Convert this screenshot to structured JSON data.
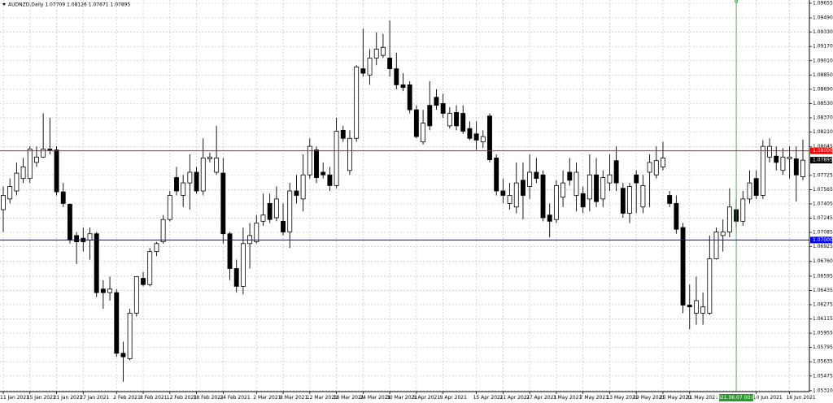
{
  "chart_data": {
    "type": "candlestick",
    "title": "AUDNZD,Daily  1.07709 1.08126 1.07671 1.07895",
    "x": [
      "11 Jan 2021",
      null,
      null,
      null,
      "15 Jan 2021",
      null,
      null,
      null,
      "21 Jan 2021",
      null,
      null,
      null,
      "27 Jan 2021",
      null,
      null,
      null,
      null,
      "2 Feb 2021",
      null,
      null,
      null,
      "8 Feb 2021",
      null,
      null,
      null,
      "12 Feb 2021",
      null,
      null,
      null,
      "18 Feb 2021",
      null,
      null,
      null,
      "24 Feb 2021",
      null,
      null,
      null,
      null,
      "2 Mar 2021",
      null,
      null,
      null,
      "8 Mar 2021",
      null,
      null,
      null,
      "12 Mar 2021",
      null,
      null,
      null,
      "18 Mar 2021",
      null,
      null,
      null,
      "24 Mar 2021",
      null,
      null,
      null,
      "30 Mar 2021",
      null,
      null,
      null,
      "5 Apr 2021",
      null,
      null,
      null,
      "9 Apr 2021",
      null,
      null,
      null,
      null,
      "15 Apr 2021",
      null,
      null,
      null,
      "21 Apr 2021",
      null,
      null,
      null,
      "27 Apr 2021",
      null,
      null,
      null,
      "3 May 2021",
      null,
      null,
      null,
      "7 May 2021",
      null,
      null,
      null,
      "13 May 2021",
      null,
      null,
      null,
      "19 May 2021",
      null,
      null,
      null,
      "25 May 2021",
      null,
      null,
      null,
      "31 May 2021",
      null,
      null,
      null,
      null,
      null,
      null,
      "2021.06.07 00:00",
      null,
      null,
      "10 Jun 2021",
      null,
      null,
      null,
      null,
      "16 Jun 2021",
      null,
      null
    ],
    "open": [
      1.0734,
      1.0746,
      1.0755,
      1.0769,
      1.0769,
      1.0787,
      1.0793,
      1.0802,
      1.0801,
      1.0754,
      1.074,
      1.0705,
      1.0702,
      1.07,
      1.0707,
      1.0645,
      1.0641,
      1.0641,
      1.0573,
      1.0567,
      1.0618,
      1.0657,
      1.065,
      1.0687,
      1.0698,
      1.0723,
      1.077,
      1.075,
      1.0764,
      1.0776,
      1.0755,
      1.0791,
      1.0776,
      1.0775,
      1.0707,
      1.0668,
      1.0648,
      1.0696,
      1.0698,
      1.0721,
      1.0741,
      1.0725,
      1.0721,
      1.0709,
      1.0755,
      1.0746,
      1.0773,
      1.0801,
      1.0776,
      1.0773,
      1.0761,
      1.0823,
      1.0778,
      1.0814,
      1.0892,
      1.0885,
      1.0904,
      1.0907,
      1.0904,
      1.0892,
      1.0874,
      1.0874,
      1.0846,
      1.081,
      1.0851,
      1.086,
      1.0853,
      1.0828,
      1.0843,
      1.0842,
      1.0825,
      1.0819,
      1.081,
      1.0839,
      1.0792,
      1.0755,
      1.0741,
      1.0737,
      1.0767,
      1.076,
      1.0776,
      1.0773,
      1.0728,
      1.0723,
      1.0748,
      1.0776,
      1.075,
      1.0752,
      1.0746,
      1.0773,
      1.0746,
      1.0764,
      1.0789,
      1.0758,
      1.073,
      1.0773,
      1.0737,
      1.0776,
      1.0773,
      1.0782,
      1.075,
      1.0741,
      1.0714,
      1.0627,
      1.0618,
      1.0618,
      1.0618,
      1.0679,
      1.0705,
      1.0709,
      1.0734,
      1.0721,
      1.0746,
      1.0769,
      1.075,
      1.0793,
      1.0794,
      1.0778,
      1.0791,
      1.0791,
      1.07709
    ],
    "high": [
      1.076,
      1.0769,
      1.0787,
      1.0792,
      1.0805,
      1.0805,
      1.0842,
      1.0837,
      1.0805,
      1.0764,
      1.0741,
      1.0709,
      1.0714,
      1.0714,
      1.0709,
      1.0655,
      1.0659,
      1.0645,
      1.0586,
      1.0623,
      1.0659,
      1.0664,
      1.0691,
      1.0698,
      1.0728,
      1.0755,
      1.0782,
      1.0773,
      1.0796,
      1.0782,
      1.0814,
      1.0798,
      1.0828,
      1.0792,
      1.0709,
      1.0678,
      1.0714,
      1.0719,
      1.0728,
      1.0752,
      1.0752,
      1.076,
      1.0741,
      1.0764,
      1.0773,
      1.0796,
      1.0814,
      1.0805,
      1.0787,
      1.0782,
      1.0837,
      1.0828,
      1.0823,
      1.0896,
      1.0937,
      1.0914,
      1.0933,
      1.0931,
      1.0946,
      1.091,
      1.0887,
      1.0878,
      1.0851,
      1.0846,
      1.0878,
      1.0869,
      1.0864,
      1.0849,
      1.0851,
      1.0851,
      1.0833,
      1.0833,
      1.0823,
      1.0842,
      1.0796,
      1.0769,
      1.0764,
      1.0787,
      1.0787,
      1.0796,
      1.0792,
      1.0778,
      1.0741,
      1.0767,
      1.0778,
      1.0792,
      1.0787,
      1.076,
      1.0796,
      1.0792,
      1.0778,
      1.0796,
      1.0805,
      1.0764,
      1.0764,
      1.0778,
      1.0773,
      1.0796,
      1.0805,
      1.081,
      1.0755,
      1.075,
      1.0719,
      1.065,
      1.0659,
      1.0641,
      1.0705,
      1.0714,
      1.0723,
      1.0758,
      1.0746,
      1.0755,
      1.0778,
      1.0778,
      1.0812,
      1.0814,
      1.0805,
      1.0803,
      1.0805,
      1.0805,
      1.08126
    ],
    "low": [
      1.0709,
      1.0741,
      1.075,
      1.0764,
      1.0764,
      1.0782,
      1.0792,
      1.0796,
      1.075,
      1.0737,
      1.0696,
      1.0673,
      1.0687,
      1.0678,
      1.0636,
      1.0623,
      1.0632,
      1.0569,
      1.0541,
      1.0565,
      1.0614,
      1.0648,
      1.0648,
      1.0682,
      1.0696,
      1.0721,
      1.075,
      1.0737,
      1.0734,
      1.0752,
      1.075,
      1.0787,
      1.0773,
      1.0696,
      1.0655,
      1.0641,
      1.0639,
      1.0668,
      1.0696,
      1.0716,
      1.0719,
      1.0721,
      1.0705,
      1.0691,
      1.0741,
      1.0732,
      1.0769,
      1.0764,
      1.0769,
      1.0755,
      1.0758,
      1.081,
      1.0773,
      1.081,
      1.0883,
      1.0874,
      1.0896,
      1.0904,
      1.0883,
      1.0869,
      1.0867,
      1.0842,
      1.0814,
      1.0807,
      1.0823,
      1.0846,
      1.0837,
      1.0825,
      1.0823,
      1.0819,
      1.0812,
      1.0801,
      1.0803,
      1.0787,
      1.075,
      1.0741,
      1.0734,
      1.073,
      1.0723,
      1.0746,
      1.0764,
      1.0721,
      1.0703,
      1.0719,
      1.0737,
      1.0761,
      1.0732,
      1.073,
      1.0732,
      1.0737,
      1.0737,
      1.0755,
      1.0755,
      1.0725,
      1.0719,
      1.073,
      1.073,
      1.0737,
      1.0769,
      1.0778,
      1.0737,
      1.0707,
      1.0618,
      1.06,
      1.0605,
      1.0605,
      1.0616,
      1.0678,
      1.0687,
      1.0703,
      1.0714,
      1.0716,
      1.0741,
      1.0746,
      1.0746,
      1.0787,
      1.0778,
      1.0773,
      1.0769,
      1.0743,
      1.07671
    ],
    "close": [
      1.075,
      1.076,
      1.0775,
      1.0782,
      1.0802,
      1.0793,
      1.0802,
      1.0801,
      1.0754,
      1.0741,
      1.07,
      1.0698,
      1.0698,
      1.0707,
      1.0641,
      1.0641,
      1.0645,
      1.0573,
      1.0569,
      1.0618,
      1.0659,
      1.065,
      1.0687,
      1.0696,
      1.0723,
      1.075,
      1.0755,
      1.0764,
      1.0776,
      1.0755,
      1.0792,
      1.0793,
      1.0792,
      1.0707,
      1.0668,
      1.0648,
      1.0696,
      1.0705,
      1.0719,
      1.0728,
      1.0723,
      1.0746,
      1.0709,
      1.0755,
      1.075,
      1.0773,
      1.0805,
      1.077,
      1.0773,
      1.0761,
      1.0822,
      1.0814,
      1.0814,
      1.0894,
      1.0887,
      1.0904,
      1.0914,
      1.0916,
      1.0892,
      1.0874,
      1.0871,
      1.0846,
      1.0816,
      1.0831,
      1.0828,
      1.0851,
      1.0842,
      1.0842,
      1.0828,
      1.0822,
      1.0814,
      1.0812,
      1.0816,
      1.079,
      1.0755,
      1.075,
      1.075,
      1.0764,
      1.075,
      1.0776,
      1.0769,
      1.0725,
      1.0721,
      1.0761,
      1.0764,
      1.0767,
      1.0776,
      1.0737,
      1.0773,
      1.0743,
      1.077,
      1.0773,
      1.0764,
      1.073,
      1.076,
      1.0764,
      1.0761,
      1.0787,
      1.0789,
      1.0792,
      1.0741,
      1.0712,
      1.0627,
      1.0625,
      1.0632,
      1.0625,
      1.0679,
      1.0709,
      1.0709,
      1.0737,
      1.0721,
      1.0746,
      1.0764,
      1.075,
      1.0805,
      1.0805,
      1.0787,
      1.0793,
      1.0793,
      1.0773,
      1.07895
    ],
    "up_color": "#ffffff",
    "down_color": "#000000",
    "wick_color": "#000000",
    "ylim": [
      1.053,
      1.09691
    ],
    "yticks": [
      {
        "value": 1.09655,
        "label": "1.09655"
      },
      {
        "value": 1.0949,
        "label": "1.09490"
      },
      {
        "value": 1.0933,
        "label": "1.09330"
      },
      {
        "value": 1.0917,
        "label": "1.09170"
      },
      {
        "value": 1.0901,
        "label": "1.09010"
      },
      {
        "value": 1.0885,
        "label": "1.08850"
      },
      {
        "value": 1.0869,
        "label": "1.08690"
      },
      {
        "value": 1.0853,
        "label": "1.08530"
      },
      {
        "value": 1.0837,
        "label": "1.08370"
      },
      {
        "value": 1.0821,
        "label": "1.08210"
      },
      {
        "value": 1.08045,
        "label": "1.08045"
      },
      {
        "value": 1.07725,
        "label": "1.07725"
      },
      {
        "value": 1.07565,
        "label": "1.07565"
      },
      {
        "value": 1.07405,
        "label": "1.07405"
      },
      {
        "value": 1.07245,
        "label": "1.07245"
      },
      {
        "value": 1.07085,
        "label": "1.07085"
      },
      {
        "value": 1.06925,
        "label": "1.06925"
      },
      {
        "value": 1.0676,
        "label": "1.06760"
      },
      {
        "value": 1.06595,
        "label": "1.06595"
      },
      {
        "value": 1.06435,
        "label": "1.06435"
      },
      {
        "value": 1.06275,
        "label": "1.06275"
      },
      {
        "value": 1.06115,
        "label": "1.06115"
      },
      {
        "value": 1.05955,
        "label": "1.05955"
      },
      {
        "value": 1.05795,
        "label": "1.05795"
      },
      {
        "value": 1.05635,
        "label": "1.05635"
      },
      {
        "value": 1.05475,
        "label": "1.05475"
      },
      {
        "value": 1.0531,
        "label": "1.05310"
      }
    ],
    "grid": true,
    "hlines": [
      {
        "value": 1.08,
        "label": "1.08000",
        "color": "#ff0000"
      },
      {
        "value": 1.07,
        "label": "1.07000",
        "color": "#0000ff"
      }
    ],
    "last_price": {
      "value": 1.07895,
      "label": "1.07895",
      "color": "#000000"
    },
    "crosshair": {
      "x": "2021.06.07 00:00",
      "color": "#2a9a2a"
    }
  }
}
